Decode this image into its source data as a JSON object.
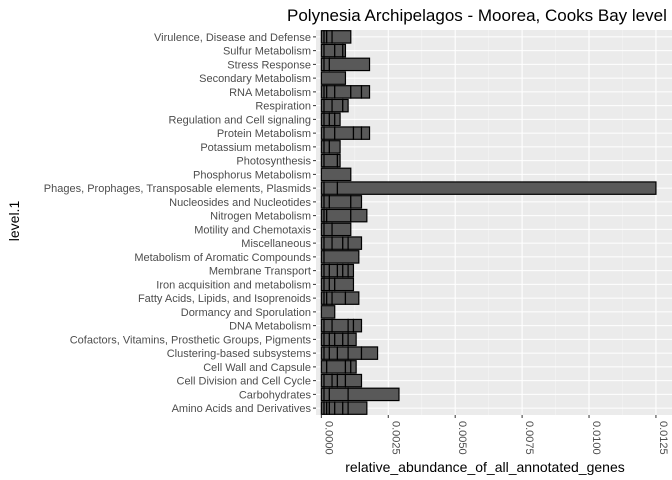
{
  "chart_data": {
    "type": "bar",
    "orientation": "horizontal",
    "title": "Polynesia Archipelagos - Moorea, Cooks Bay level",
    "xlabel": "relative_abundance_of_all_annotated_genes",
    "ylabel": "level.1",
    "xlim": [
      -0.0002,
      0.0131
    ],
    "x_ticks": [
      0,
      0.0025,
      0.005,
      0.0075,
      0.01,
      0.0125
    ],
    "x_tick_labels": [
      "0.0000",
      "0.0025",
      "0.0050",
      "0.0075",
      "0.0100",
      "0.0125"
    ],
    "grid": true,
    "categories": [
      "Virulence, Disease and Defense",
      "Sulfur Metabolism",
      "Stress Response",
      "Secondary Metabolism",
      "RNA Metabolism",
      "Respiration",
      "Regulation and Cell signaling",
      "Protein Metabolism",
      "Potassium metabolism",
      "Photosynthesis",
      "Phosphorus Metabolism",
      "Phages, Prophages, Transposable elements, Plasmids",
      "Nucleosides and Nucleotides",
      "Nitrogen Metabolism",
      "Motility and Chemotaxis",
      "Miscellaneous",
      "Metabolism of Aromatic Compounds",
      "Membrane Transport",
      "Iron acquisition and metabolism",
      "Fatty Acids, Lipids, and Isoprenoids",
      "Dormancy and Sporulation",
      "DNA Metabolism",
      "Cofactors, Vitamins, Prosthetic Groups, Pigments",
      "Clustering-based subsystems",
      "Cell Wall and Capsule",
      "Cell Division and Cell Cycle",
      "Carbohydrates",
      "Amino Acids and Derivatives"
    ],
    "segments": [
      [
        0.0001,
        0.0001,
        0.0002,
        0.0007
      ],
      [
        0.0001,
        0.0004,
        0.0003,
        0.0001
      ],
      [
        0.0001,
        0.0002,
        0.0015
      ],
      [
        0.0009
      ],
      [
        0.0001,
        0.0001,
        0.0003,
        0.0006,
        0.0004,
        0.0003
      ],
      [
        0.0001,
        0.0003,
        0.0004,
        0.0002
      ],
      [
        0.0001,
        0.0002,
        0.0002,
        0.0002
      ],
      [
        0.0001,
        0.0004,
        0.0007,
        0.0003,
        0.0003
      ],
      [
        0.0001,
        0.0002,
        0.0004
      ],
      [
        0.0001,
        0.0005,
        0.0001
      ],
      [
        0.0011
      ],
      [
        0.0001,
        0.0005,
        0.0119
      ],
      [
        0.0001,
        0.0002,
        0.0008,
        0.0004
      ],
      [
        0.0001,
        0.0001,
        0.0009,
        0.0006
      ],
      [
        0.0001,
        0.0003,
        0.0007
      ],
      [
        0.0001,
        0.0003,
        0.0004,
        0.0002,
        0.0005
      ],
      [
        0.0001,
        0.0013
      ],
      [
        0.0001,
        0.0002,
        0.0003,
        0.0002,
        0.0002,
        0.0002
      ],
      [
        0.0001,
        0.0002,
        0.0002,
        0.0007
      ],
      [
        0.0001,
        0.0001,
        0.0002,
        0.0005,
        0.0005
      ],
      [
        0.0005
      ],
      [
        0.0001,
        0.0003,
        0.0006,
        0.0002,
        0.0003
      ],
      [
        0.0001,
        0.0002,
        0.0002,
        0.0003,
        0.0002,
        0.0003
      ],
      [
        0.0001,
        0.0002,
        0.0003,
        0.0004,
        0.0005,
        0.0006
      ],
      [
        0.0002,
        0.0007,
        0.0002,
        0.0002
      ],
      [
        0.0001,
        0.0003,
        0.0002,
        0.0003,
        0.0006
      ],
      [
        0.0001,
        0.0002,
        0.0007,
        0.0019
      ],
      [
        0.0001,
        0.0001,
        0.0001,
        0.0002,
        0.0003,
        0.0002,
        0.0007
      ]
    ]
  }
}
